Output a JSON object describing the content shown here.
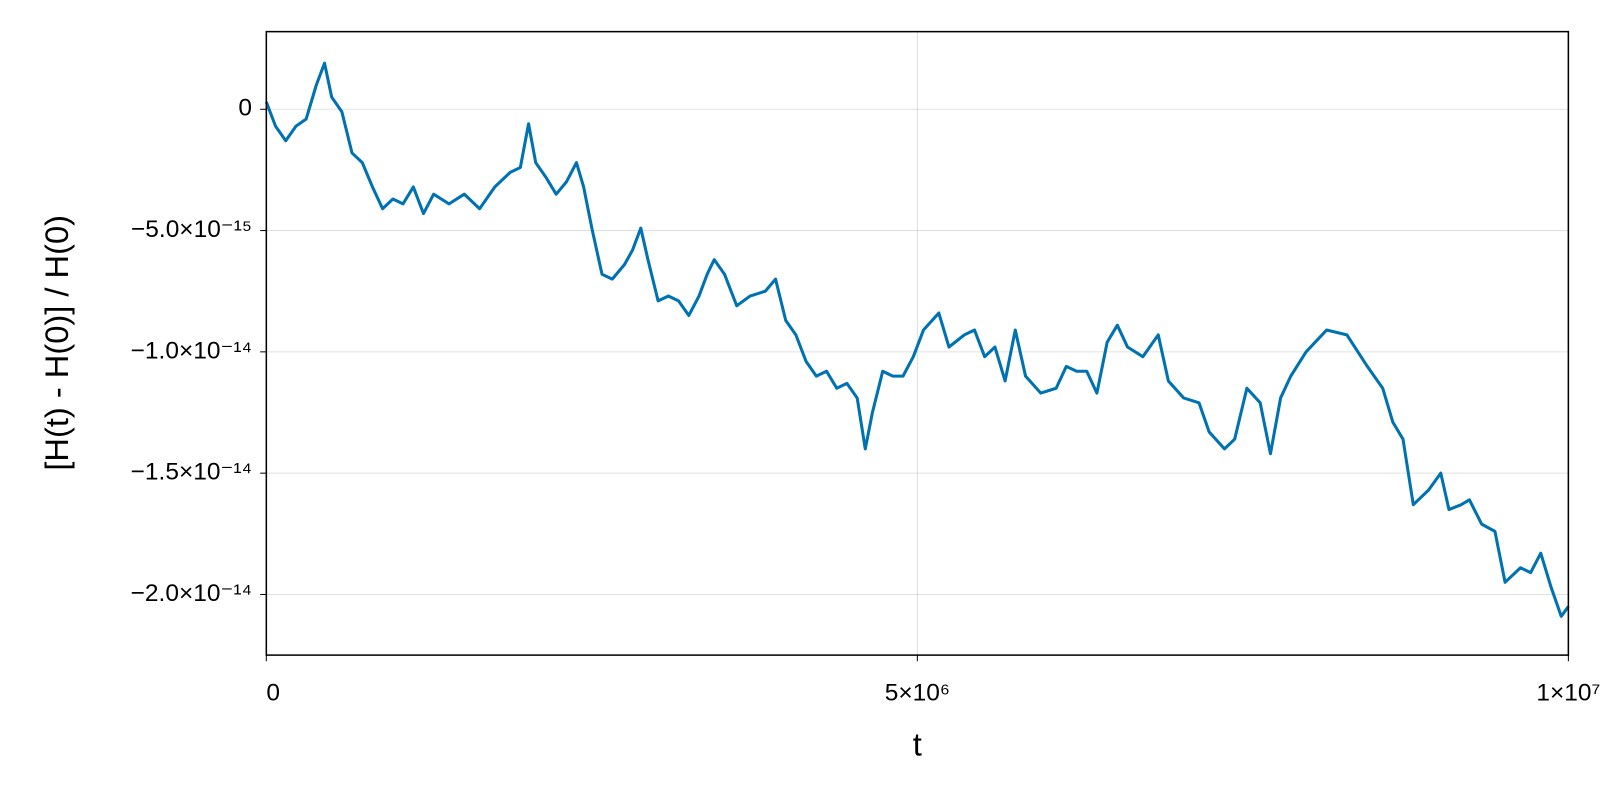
{
  "chart_data": {
    "type": "line",
    "xlabel": "t",
    "ylabel": "[H(t) - H(0)] / H(0)",
    "color": "#0072b2",
    "grid": true,
    "xlim": [
      0,
      10000000
    ],
    "xticks": [
      0,
      {
        "value": 5000000,
        "label": "5×10⁶"
      },
      {
        "value": 10000000,
        "label": "1×10⁷"
      }
    ],
    "ylim": [
      -2.25e-14,
      3.2e-15
    ],
    "yticks": [
      {
        "value": -2e-14,
        "label": "−2.0×10⁻¹⁴"
      },
      {
        "value": -1.5e-14,
        "label": "−1.5×10⁻¹⁴"
      },
      {
        "value": -1e-14,
        "label": "−1.0×10⁻¹⁴"
      },
      {
        "value": -5e-15,
        "label": "−5.0×10⁻¹⁵"
      },
      0
    ],
    "x": [
      0,
      71000,
      149000,
      227000,
      306000,
      384000,
      447000,
      502000,
      580000,
      658000,
      737000,
      815000,
      893000,
      972000,
      1050000,
      1129000,
      1207000,
      1285000,
      1403000,
      1520000,
      1638000,
      1755000,
      1873000,
      1951000,
      2014000,
      2069000,
      2147000,
      2226000,
      2304000,
      2382000,
      2437000,
      2500000,
      2578000,
      2657000,
      2751000,
      2813000,
      2876000,
      2931000,
      3009000,
      3088000,
      3166000,
      3245000,
      3323000,
      3386000,
      3440000,
      3519000,
      3613000,
      3715000,
      3832000,
      3911000,
      3989000,
      4067000,
      4146000,
      4224000,
      4303000,
      4381000,
      4459000,
      4538000,
      4600000,
      4655000,
      4734000,
      4812000,
      4890000,
      4969000,
      5047000,
      5165000,
      5243000,
      5361000,
      5439000,
      5517000,
      5596000,
      5674000,
      5752000,
      5831000,
      5948000,
      6066000,
      6144000,
      6223000,
      6301000,
      6379000,
      6458000,
      6536000,
      6614000,
      6732000,
      6850000,
      6928000,
      7045000,
      7163000,
      7241000,
      7359000,
      7437000,
      7531000,
      7633000,
      7712000,
      7790000,
      7868000,
      7986000,
      8143000,
      8299000,
      8456000,
      8574000,
      8652000,
      8730000,
      8809000,
      8926000,
      9020000,
      9083000,
      9177000,
      9240000,
      9334000,
      9436000,
      9514000,
      9632000,
      9710000,
      9788000,
      9867000,
      9945000,
      10000000
    ],
    "values": [
      3e-16,
      -7e-16,
      -1.3e-15,
      -7e-16,
      -4e-16,
      1e-15,
      1.9e-15,
      5e-16,
      -1e-16,
      -1.8e-15,
      -2.2e-15,
      -3.2e-15,
      -4.1e-15,
      -3.7e-15,
      -3.9e-15,
      -3.2e-15,
      -4.3e-15,
      -3.5e-15,
      -3.9e-15,
      -3.5e-15,
      -4.1e-15,
      -3.2e-15,
      -2.6e-15,
      -2.4e-15,
      -6e-16,
      -2.2e-15,
      -2.8e-15,
      -3.5e-15,
      -3e-15,
      -2.2e-15,
      -3.2e-15,
      -4.9e-15,
      -6.8e-15,
      -7e-15,
      -6.4e-15,
      -5.8e-15,
      -4.9e-15,
      -6.2e-15,
      -7.9e-15,
      -7.7e-15,
      -7.9e-15,
      -8.5e-15,
      -7.7e-15,
      -6.8e-15,
      -6.2e-15,
      -6.8e-15,
      -8.1e-15,
      -7.7e-15,
      -7.5e-15,
      -7e-15,
      -8.7e-15,
      -9.3e-15,
      -1.04e-14,
      -1.1e-14,
      -1.08e-14,
      -1.15e-14,
      -1.13e-14,
      -1.19e-14,
      -1.4e-14,
      -1.25e-14,
      -1.08e-14,
      -1.1e-14,
      -1.1e-14,
      -1.02e-14,
      -9.1e-15,
      -8.4e-15,
      -9.8e-15,
      -9.3e-15,
      -9.1e-15,
      -1.02e-14,
      -9.8e-15,
      -1.12e-14,
      -9.1e-15,
      -1.1e-14,
      -1.17e-14,
      -1.15e-14,
      -1.06e-14,
      -1.08e-14,
      -1.08e-14,
      -1.17e-14,
      -9.6e-15,
      -8.9e-15,
      -9.8e-15,
      -1.02e-14,
      -9.3e-15,
      -1.12e-14,
      -1.19e-14,
      -1.21e-14,
      -1.33e-14,
      -1.4e-14,
      -1.36e-14,
      -1.15e-14,
      -1.21e-14,
      -1.42e-14,
      -1.19e-14,
      -1.1e-14,
      -1e-14,
      -9.1e-15,
      -9.3e-15,
      -1.06e-14,
      -1.15e-14,
      -1.29e-14,
      -1.36e-14,
      -1.63e-14,
      -1.57e-14,
      -1.5e-14,
      -1.65e-14,
      -1.63e-14,
      -1.61e-14,
      -1.71e-14,
      -1.74e-14,
      -1.95e-14,
      -1.89e-14,
      -1.91e-14,
      -1.83e-14,
      -1.97e-14,
      -2.09e-14,
      -2.05e-14
    ]
  }
}
